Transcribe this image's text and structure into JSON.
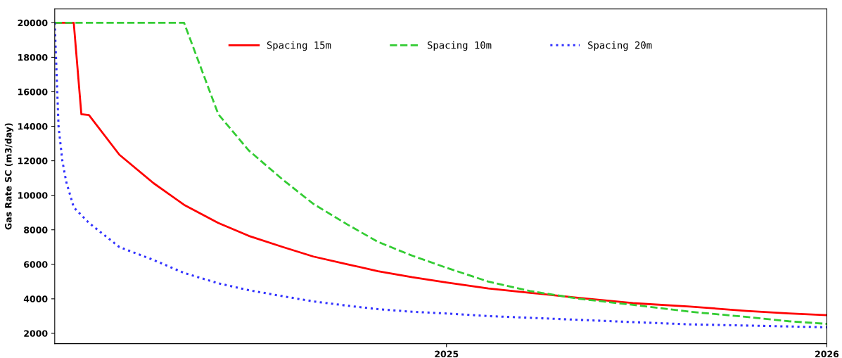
{
  "chart_data": {
    "type": "line",
    "ylabel": "Gas Rate SC (m3/day)",
    "xlim": [
      2023.97,
      2026.0
    ],
    "xticks": [
      2025,
      2026
    ],
    "ylim": [
      1400,
      20800
    ],
    "yticks": [
      2000,
      4000,
      6000,
      8000,
      10000,
      12000,
      14000,
      16000,
      18000,
      20000
    ],
    "grid": false,
    "legend": "top",
    "marker": "none",
    "series": [
      {
        "name": "Spacing 15m",
        "color": "#ff0000",
        "line_style": "solid",
        "x": [
          2023.97,
          2024.02,
          2024.04,
          2024.06,
          2024.14,
          2024.23,
          2024.31,
          2024.4,
          2024.48,
          2024.57,
          2024.65,
          2024.74,
          2024.82,
          2024.91,
          2025.0,
          2025.11,
          2025.22,
          2025.35,
          2025.49,
          2025.64,
          2025.79,
          2025.9,
          2026.0
        ],
        "values": [
          20000,
          20000,
          14700,
          14650,
          12350,
          10700,
          9450,
          8400,
          7650,
          7000,
          6450,
          6000,
          5600,
          5250,
          4950,
          4600,
          4350,
          4050,
          3750,
          3550,
          3300,
          3150,
          3050
        ]
      },
      {
        "name": "Spacing 10m",
        "color": "#33cc33",
        "line_style": "dashed",
        "x": [
          2023.97,
          2024.31,
          2024.4,
          2024.48,
          2024.57,
          2024.65,
          2024.74,
          2024.82,
          2024.91,
          2025.0,
          2025.11,
          2025.22,
          2025.35,
          2025.49,
          2025.64,
          2025.79,
          2025.9,
          2026.0
        ],
        "values": [
          20000,
          20000,
          14700,
          12600,
          10900,
          9500,
          8300,
          7300,
          6500,
          5800,
          5000,
          4450,
          4000,
          3650,
          3250,
          2950,
          2700,
          2550
        ]
      },
      {
        "name": "Spacing 20m",
        "color": "#3333ff",
        "line_style": "dotted",
        "x": [
          2023.97,
          2023.98,
          2023.99,
          2024.0,
          2024.02,
          2024.06,
          2024.14,
          2024.23,
          2024.31,
          2024.4,
          2024.48,
          2024.57,
          2024.65,
          2024.74,
          2024.82,
          2024.91,
          2025.0,
          2025.11,
          2025.22,
          2025.35,
          2025.49,
          2025.64,
          2025.79,
          2026.0
        ],
        "values": [
          20000,
          14000,
          12000,
          10800,
          9300,
          8400,
          7000,
          6250,
          5500,
          4900,
          4500,
          4150,
          3850,
          3600,
          3400,
          3250,
          3150,
          3000,
          2900,
          2780,
          2650,
          2520,
          2450,
          2350
        ]
      }
    ]
  }
}
